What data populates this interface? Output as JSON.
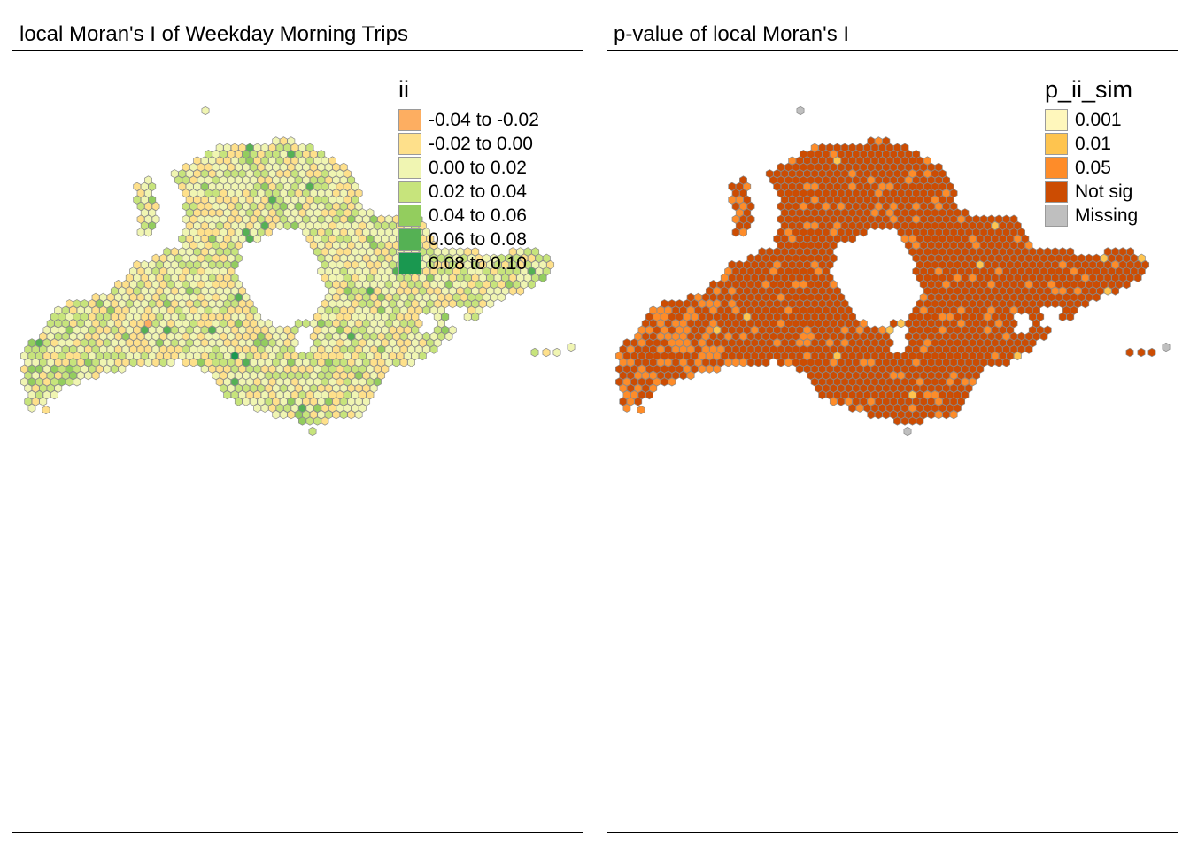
{
  "panels": [
    {
      "title": "local Moran's I of Weekday Morning Trips",
      "legend": {
        "title": "ii",
        "items": [
          {
            "label": "-0.04 to -0.02",
            "color": "#fdae61"
          },
          {
            "label": "-0.02 to 0.00",
            "color": "#fee08b"
          },
          {
            "label": "0.00 to 0.02",
            "color": "#f0f5b2"
          },
          {
            "label": "0.02 to 0.04",
            "color": "#c7e47c"
          },
          {
            "label": "0.04 to 0.06",
            "color": "#93cd5e"
          },
          {
            "label": "0.06 to 0.08",
            "color": "#55b154"
          },
          {
            "label": "0.08 to 0.10",
            "color": "#1a9850"
          }
        ]
      }
    },
    {
      "title": "p-value of local Moran's I",
      "legend": {
        "title": "p_ii_sim",
        "items": [
          {
            "label": "0.001",
            "color": "#fff7bc"
          },
          {
            "label": "0.01",
            "color": "#fec44f"
          },
          {
            "label": "0.05",
            "color": "#fe8c29"
          },
          {
            "label": "Not sig",
            "color": "#cc4c02"
          },
          {
            "label": "Missing",
            "color": "#bfbfbf"
          }
        ]
      }
    }
  ],
  "map": {
    "cell_shape": "hexagon",
    "hex_outline_color": "#8a8a8a"
  }
}
